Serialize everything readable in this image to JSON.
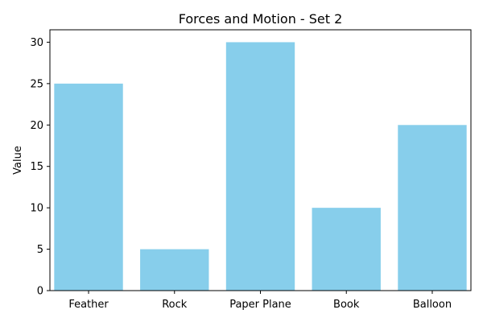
{
  "chart_data": {
    "type": "bar",
    "title": "Forces and Motion - Set 2",
    "xlabel": "",
    "ylabel": "Value",
    "categories": [
      "Feather",
      "Rock",
      "Paper Plane",
      "Book",
      "Balloon"
    ],
    "values": [
      25,
      5,
      30,
      10,
      20
    ],
    "ylim": [
      0,
      31.5
    ],
    "yticks": [
      0,
      5,
      10,
      15,
      20,
      25,
      30
    ],
    "bar_color": "#87ceeb",
    "grid": false,
    "legend": "none"
  }
}
